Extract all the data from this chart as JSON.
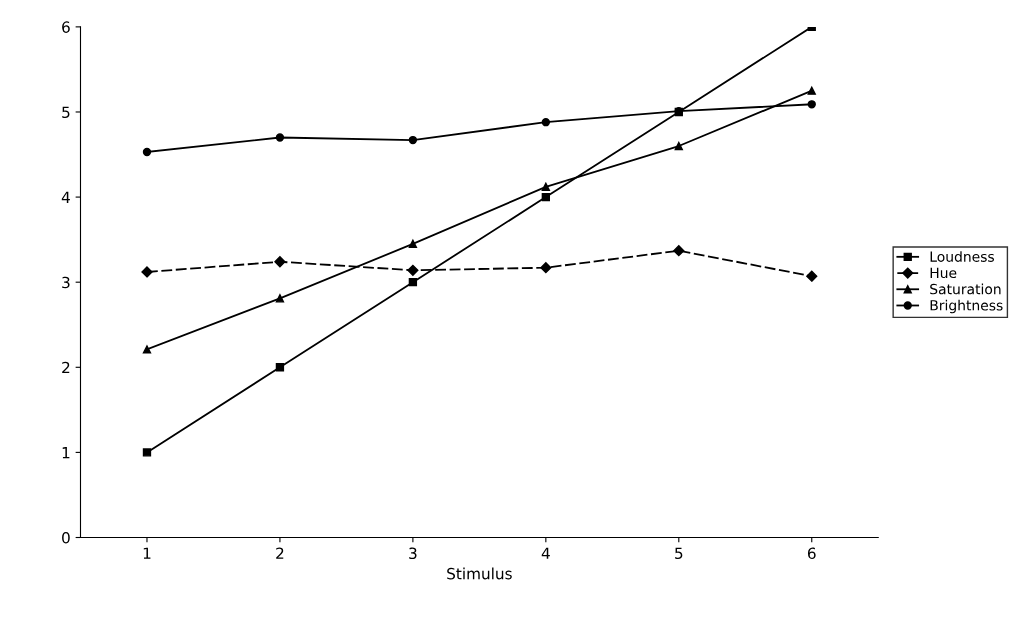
{
  "chart_data": {
    "type": "line",
    "xlabel": "Stimulus",
    "categories": [
      "1",
      "2",
      "3",
      "4",
      "5",
      "6"
    ],
    "series": [
      {
        "name": "Loudness",
        "color": "#000000",
        "marker": "square",
        "values": [
          1,
          2,
          3,
          4,
          5,
          6
        ]
      },
      {
        "name": "Hue",
        "color": "#000000",
        "marker": "diamond",
        "line_style": "dashed",
        "values": [
          3.12,
          3.24,
          3.14,
          3.17,
          3.37,
          3.07
        ]
      },
      {
        "name": "Saturation",
        "color": "#000000",
        "marker": "triangle",
        "values": [
          2.21,
          2.81,
          3.45,
          4.12,
          4.6,
          5.25
        ]
      },
      {
        "name": "Brightness",
        "color": "#000000",
        "marker": "circle",
        "values": [
          4.53,
          4.7,
          4.67,
          4.88,
          5.01,
          5.09
        ]
      }
    ],
    "ylim": [
      0,
      6
    ],
    "yticks": [
      0,
      1,
      2,
      3,
      4,
      5,
      6
    ],
    "grid": false,
    "legend": "right"
  }
}
